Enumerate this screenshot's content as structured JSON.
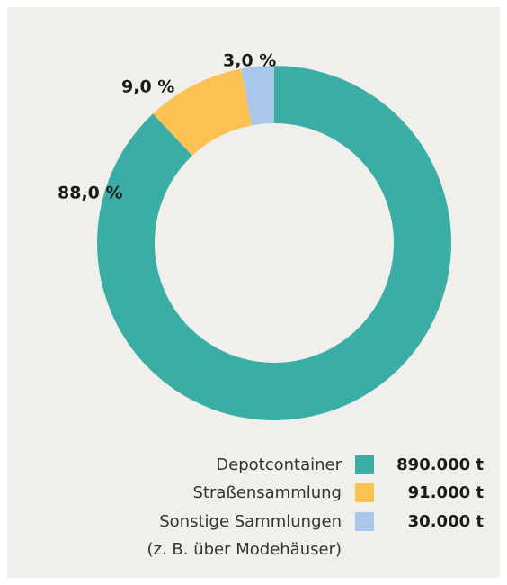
{
  "chart_data": {
    "type": "donut",
    "series": [
      {
        "name": "Depotcontainer",
        "color": "#3aaea5",
        "values": [
          88.0
        ],
        "value_labels": [
          "88,0 %"
        ],
        "amounts": [
          890000
        ],
        "amount_labels": [
          "890.000 t"
        ]
      },
      {
        "name": "Straßensammlung",
        "color": "#fcc153",
        "values": [
          9.0
        ],
        "value_labels": [
          "9,0 %"
        ],
        "amounts": [
          91000
        ],
        "amount_labels": [
          "91.000 t"
        ]
      },
      {
        "name": "Sonstige Sammlungen\n(z. B. über Modehäuser)",
        "color": "#a9c7ea",
        "values": [
          3.0
        ],
        "value_labels": [
          "3,0 %"
        ],
        "amounts": [
          30000
        ],
        "amount_labels": [
          "30.000 t"
        ]
      }
    ]
  }
}
